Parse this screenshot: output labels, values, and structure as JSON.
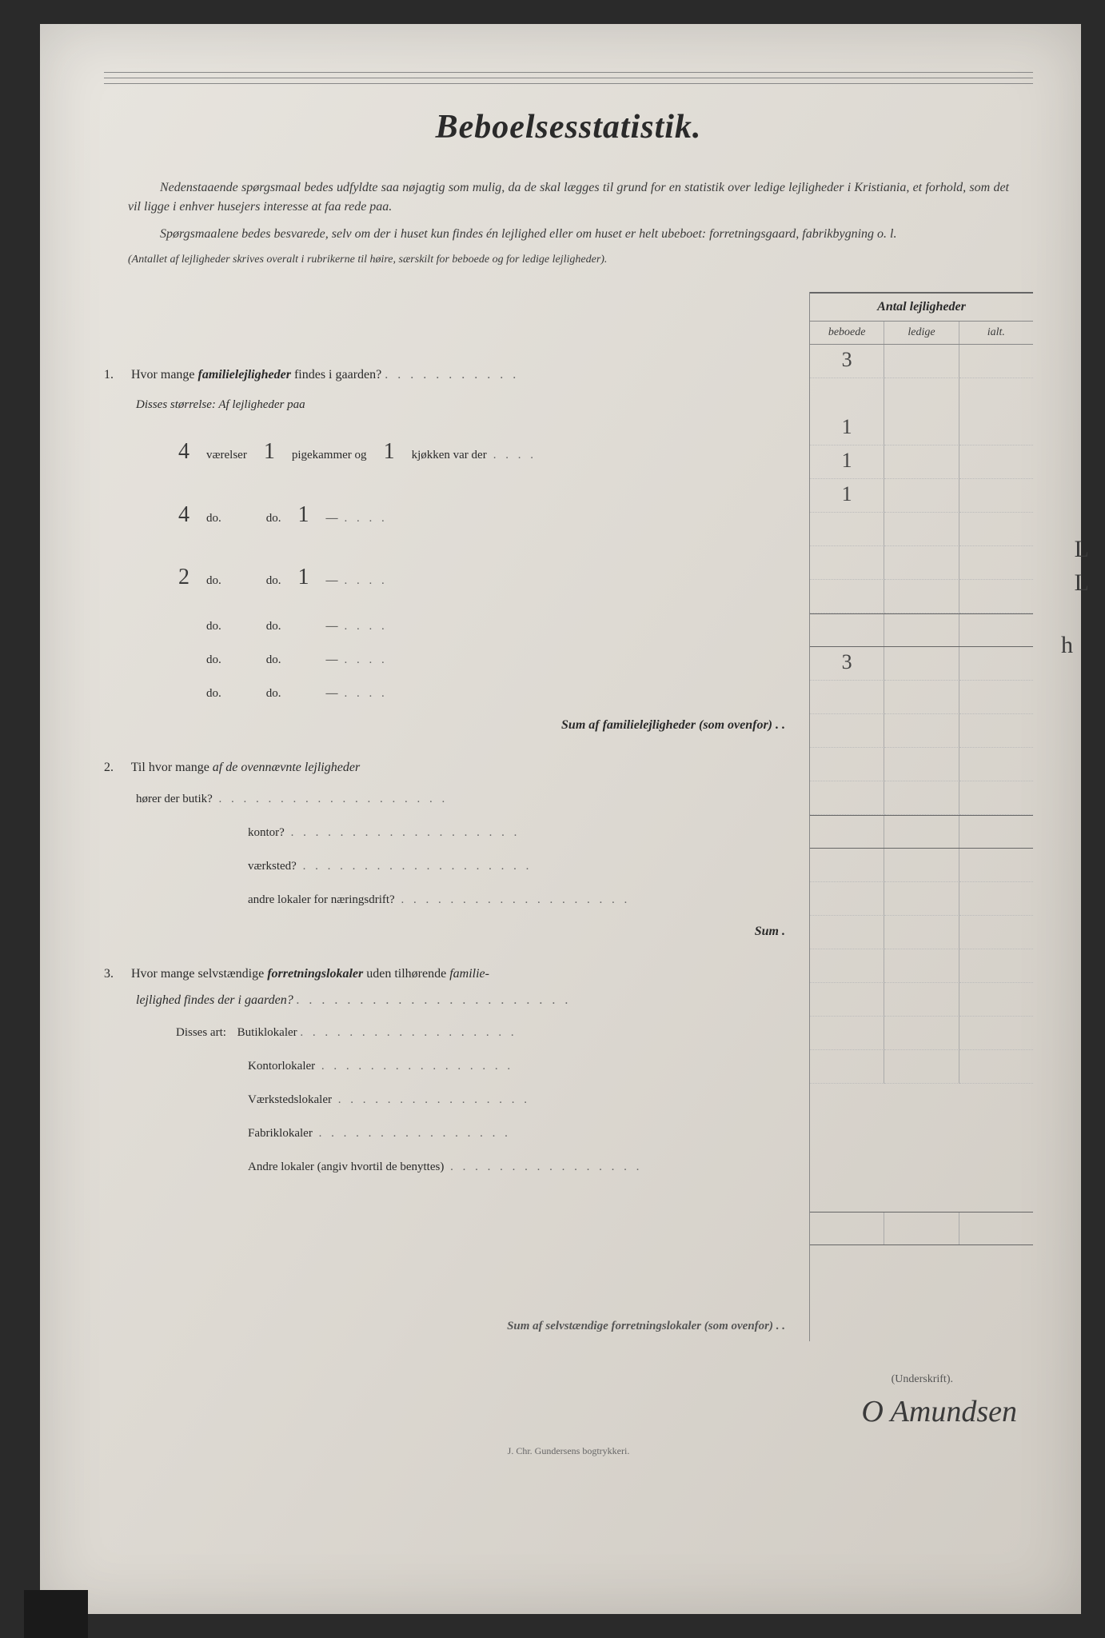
{
  "title": "Beboelsesstatistik.",
  "intro": {
    "p1": "Nedenstaaende spørgsmaal bedes udfyldte saa nøjagtig som mulig, da de skal lægges til grund for en statistik over ledige lejligheder i Kristiania, et forhold, som det vil ligge i enhver husejers interesse at faa rede paa.",
    "p2": "Spørgsmaalene bedes besvarede, selv om der i huset kun findes én lejlighed eller om huset er helt ubeboet: forretningsgaard, fabrikbygning o. l.",
    "p3": "(Antallet af lejligheder skrives overalt i rubrikerne til høire, særskilt for beboede og for ledige lejligheder)."
  },
  "table_header": {
    "title": "Antal lejligheder",
    "col1": "beboede",
    "col2": "ledige",
    "col3": "ialt."
  },
  "q1": {
    "num": "1.",
    "text": "Hvor mange ",
    "bold": "familielejligheder",
    "text2": " findes i gaarden?",
    "sub": "Disses størrelse:   Af lejligheder paa",
    "rows": [
      {
        "v1": "4",
        "w1": "værelser",
        "v2": "1",
        "w2": "pigekammer og",
        "v3": "1",
        "w3": "kjøkken var der",
        "beboede": "1",
        "margin": "L"
      },
      {
        "v1": "4",
        "w1": "do.",
        "v2": "",
        "w2": "do.",
        "v3": "1",
        "w3": "—",
        "beboede": "1",
        "margin": "L"
      },
      {
        "v1": "2",
        "w1": "do.",
        "v2": "",
        "w2": "do.",
        "v3": "1",
        "w3": "—",
        "beboede": "1",
        "margin": "h"
      },
      {
        "v1": "",
        "w1": "do.",
        "v2": "",
        "w2": "do.",
        "v3": "",
        "w3": "—",
        "beboede": "",
        "margin": ""
      },
      {
        "v1": "",
        "w1": "do.",
        "v2": "",
        "w2": "do.",
        "v3": "",
        "w3": "—",
        "beboede": "",
        "margin": ""
      },
      {
        "v1": "",
        "w1": "do.",
        "v2": "",
        "w2": "do.",
        "v3": "",
        "w3": "—",
        "beboede": "",
        "margin": ""
      }
    ],
    "sum": "Sum af familielejligheder (som ovenfor) . .",
    "total": "3"
  },
  "q2": {
    "num": "2.",
    "text": "Til hvor mange ",
    "italic": "af de ovennævnte lejligheder",
    "lines": [
      "hører der butik?",
      "kontor?",
      "værksted?",
      "andre lokaler for næringsdrift?"
    ],
    "sum": "Sum .",
    "val": "3"
  },
  "q3": {
    "num": "3.",
    "text": "Hvor mange selvstændige ",
    "bold": "forretningslokaler",
    "text2": " uden tilhørende ",
    "italic2": "familie-",
    "line2": "lejlighed findes der i gaarden?",
    "sub_label": "Disses art:",
    "lines": [
      "Butiklokaler",
      "Kontorlokaler",
      "Værkstedslokaler",
      "Fabriklokaler",
      "Andre lokaler (angiv hvortil de benyttes)"
    ],
    "sum": "Sum af selvstændige forretningslokaler (som ovenfor) . ."
  },
  "underskrift": "(Underskrift).",
  "signature": "O Amundsen",
  "printer": "J. Chr. Gundersens bogtrykkeri.",
  "colors": {
    "page_bg": "#e0ddd6",
    "text": "#2a2a2a",
    "rule": "#888888"
  }
}
